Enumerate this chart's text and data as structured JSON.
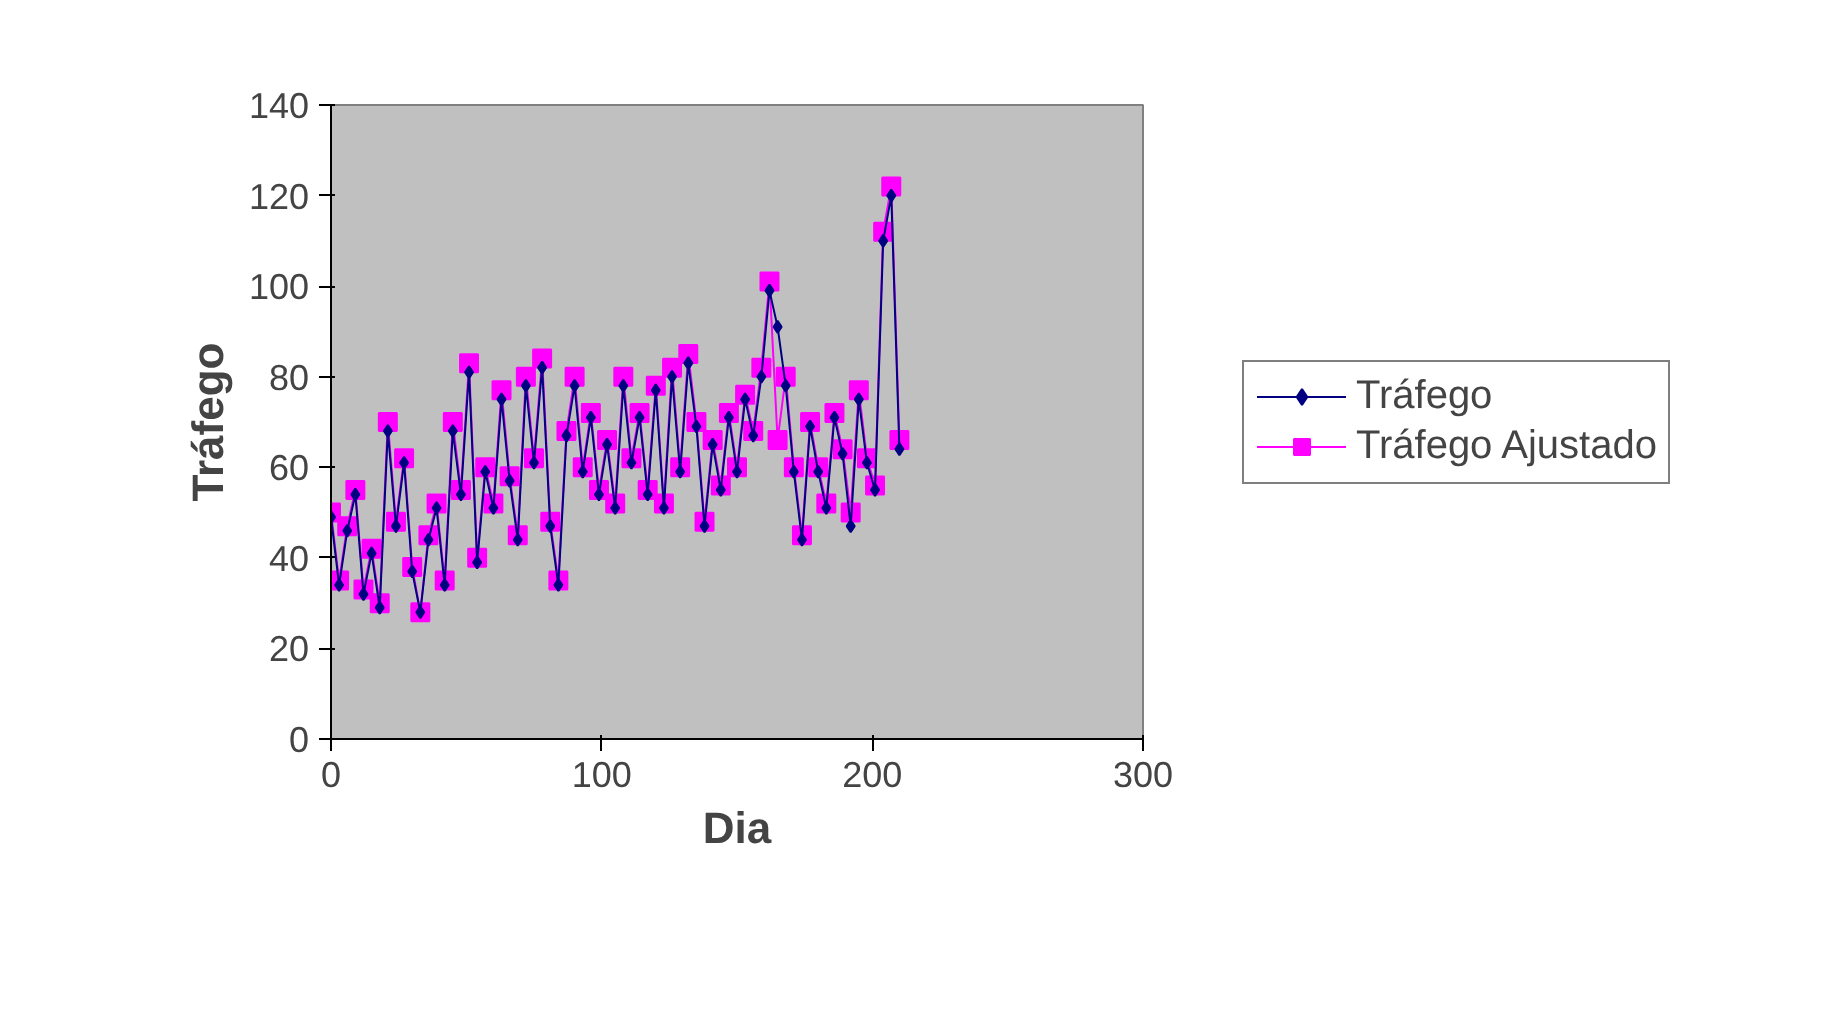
{
  "chart_data": {
    "type": "line",
    "xlabel": "Dia",
    "ylabel": "Tráfego",
    "xlim": [
      0,
      300
    ],
    "xticks": [
      0,
      100,
      200,
      300
    ],
    "ylim": [
      0,
      140
    ],
    "yticks": [
      0,
      20,
      40,
      60,
      80,
      100,
      120,
      140
    ],
    "grid": false,
    "legend": "right",
    "x": [
      0,
      3,
      6,
      9,
      12,
      15,
      18,
      21,
      24,
      27,
      30,
      33,
      36,
      39,
      42,
      45,
      48,
      51,
      54,
      57,
      60,
      63,
      66,
      69,
      72,
      75,
      78,
      81,
      84,
      87,
      90,
      93,
      96,
      99,
      102,
      105,
      108,
      111,
      114,
      117,
      120,
      123,
      126,
      129,
      132,
      135,
      138,
      141,
      144,
      147,
      150,
      153,
      156,
      159,
      162,
      165,
      168,
      171,
      174,
      177,
      180,
      183,
      186,
      189,
      192,
      195,
      198,
      201,
      204,
      207,
      210
    ],
    "series": [
      {
        "name": "Tráfego",
        "color": "#000080",
        "marker": "diamond",
        "values": [
          49,
          34,
          46,
          54,
          32,
          41,
          29,
          68,
          47,
          61,
          37,
          28,
          44,
          51,
          34,
          68,
          54,
          81,
          39,
          59,
          51,
          75,
          57,
          44,
          78,
          61,
          82,
          47,
          34,
          67,
          78,
          59,
          71,
          54,
          65,
          51,
          78,
          61,
          71,
          54,
          77,
          51,
          80,
          59,
          83,
          69,
          47,
          65,
          55,
          71,
          59,
          75,
          67,
          80,
          99,
          91,
          78,
          59,
          44,
          69,
          59,
          51,
          71,
          63,
          47,
          75,
          61,
          55,
          110,
          120,
          64
        ]
      },
      {
        "name": "Tráfego Ajustado",
        "color": "#ff00ff",
        "marker": "square",
        "values": [
          50,
          35,
          47,
          55,
          33,
          42,
          30,
          70,
          48,
          62,
          38,
          28,
          45,
          52,
          35,
          70,
          55,
          83,
          40,
          60,
          52,
          77,
          58,
          45,
          80,
          62,
          84,
          48,
          35,
          68,
          80,
          60,
          72,
          55,
          66,
          52,
          80,
          62,
          72,
          55,
          78,
          52,
          82,
          60,
          85,
          70,
          48,
          66,
          56,
          72,
          60,
          76,
          68,
          82,
          101,
          66,
          80,
          60,
          45,
          70,
          60,
          52,
          72,
          64,
          50,
          77,
          62,
          56,
          112,
          122,
          66
        ]
      }
    ]
  }
}
